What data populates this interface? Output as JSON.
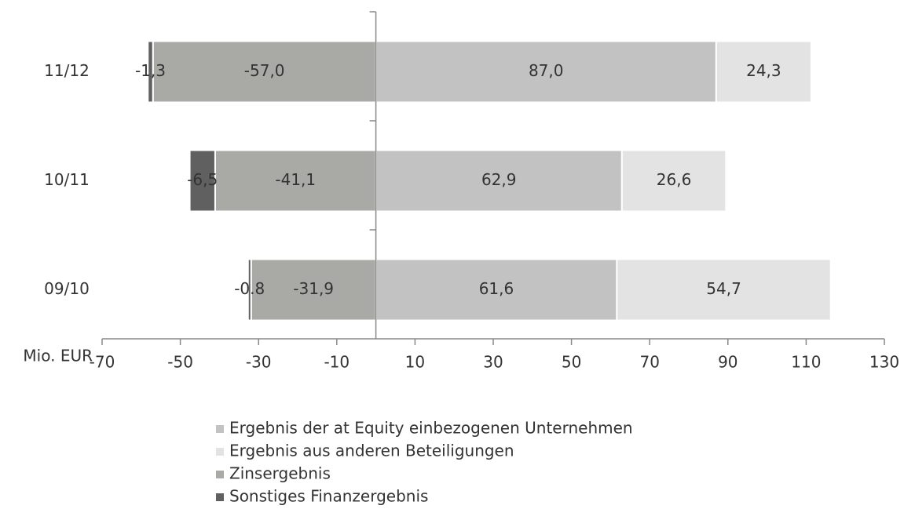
{
  "chart_data": {
    "type": "bar",
    "orientation": "horizontal",
    "stacked": true,
    "x_label": "Mio. EUR",
    "categories": [
      "11/12",
      "10/11",
      "09/10"
    ],
    "series": [
      {
        "name": "Ergebnis der at Equity einbezogenen Unternehmen",
        "color": "#c2c2c2",
        "values": [
          87.0,
          62.9,
          61.6
        ],
        "value_labels": [
          "87,0",
          "62,9",
          "61,6"
        ]
      },
      {
        "name": "Ergebnis aus anderen Beteiligungen",
        "color": "#e3e3e3",
        "values": [
          24.3,
          26.6,
          54.7
        ],
        "value_labels": [
          "24,3",
          "26,6",
          "54,7"
        ]
      },
      {
        "name": "Zinsergebnis",
        "color": "#a9a9a6",
        "values": [
          -57.0,
          -41.1,
          -31.9
        ],
        "value_labels": [
          "-57,0",
          "-41,1",
          "-31,9"
        ]
      },
      {
        "name": "Sonstiges Finanzergebnis",
        "color": "#606060",
        "values": [
          -1.3,
          -6.5,
          -0.8
        ],
        "value_labels": [
          "-1,3",
          "-6,5",
          "-0.8"
        ]
      }
    ],
    "xlim": [
      -70,
      130
    ],
    "xticks": [
      -70,
      -50,
      -30,
      -10,
      10,
      30,
      50,
      70,
      90,
      110,
      130
    ]
  }
}
